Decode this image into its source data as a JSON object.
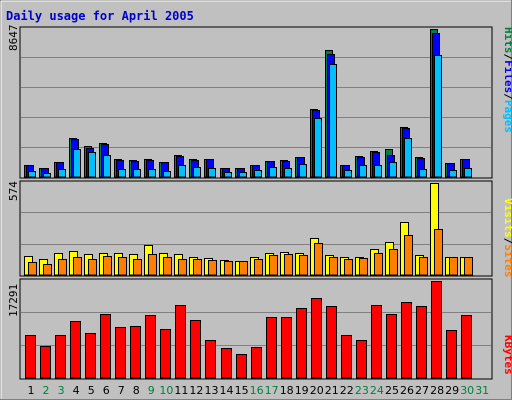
{
  "chart_data": [
    {
      "type": "bar",
      "title": "Daily usage for April 2005",
      "panel": "hits-files-pages",
      "categories": [
        "1",
        "2",
        "3",
        "4",
        "5",
        "6",
        "7",
        "8",
        "9",
        "10",
        "11",
        "12",
        "13",
        "14",
        "15",
        "16",
        "17",
        "18",
        "19",
        "20",
        "21",
        "22",
        "23",
        "24",
        "25",
        "26",
        "27",
        "28",
        "29",
        "30",
        "31"
      ],
      "weekend_days": [
        "2",
        "3",
        "9",
        "10",
        "16",
        "17",
        "23",
        "24",
        "30",
        "31"
      ],
      "ymax_label": "8647",
      "ylim": [
        0,
        8647
      ],
      "right_labels": [
        "Pages",
        "Files",
        "Hits"
      ],
      "series": [
        {
          "name": "Hits",
          "color": "#008040",
          "values": [
            700,
            510,
            880,
            2300,
            1800,
            1980,
            1030,
            980,
            1030,
            880,
            1300,
            1030,
            1060,
            540,
            540,
            730,
            950,
            980,
            1180,
            4000,
            7400,
            730,
            1200,
            1510,
            1620,
            2950,
            1180,
            8647,
            840,
            1080,
            0
          ]
        },
        {
          "name": "Files",
          "color": "#0000ff",
          "values": [
            680,
            500,
            860,
            2200,
            1720,
            1900,
            1000,
            950,
            1000,
            860,
            1250,
            1000,
            1030,
            520,
            520,
            700,
            920,
            950,
            1150,
            3900,
            7200,
            700,
            1180,
            1450,
            1300,
            2850,
            1130,
            8400,
            820,
            1050,
            0
          ]
        },
        {
          "name": "Pages",
          "color": "#00c0ff",
          "values": [
            350,
            250,
            450,
            1650,
            1480,
            1300,
            490,
            490,
            490,
            370,
            700,
            570,
            510,
            270,
            270,
            400,
            570,
            510,
            770,
            3450,
            6600,
            420,
            680,
            730,
            860,
            2300,
            490,
            7150,
            400,
            510,
            0
          ]
        }
      ]
    },
    {
      "type": "bar",
      "panel": "sites-visits",
      "categories": [
        "1",
        "2",
        "3",
        "4",
        "5",
        "6",
        "7",
        "8",
        "9",
        "10",
        "11",
        "12",
        "13",
        "14",
        "15",
        "16",
        "17",
        "18",
        "19",
        "20",
        "21",
        "22",
        "23",
        "24",
        "25",
        "26",
        "27",
        "28",
        "29",
        "30",
        "31"
      ],
      "ymax_label": "574",
      "ylim": [
        0,
        574
      ],
      "right_labels": [
        "Sites",
        "Visits"
      ],
      "series": [
        {
          "name": "Visits",
          "color": "#ffff00",
          "values": [
            120,
            100,
            140,
            150,
            130,
            140,
            135,
            130,
            190,
            135,
            130,
            115,
            105,
            95,
            90,
            110,
            140,
            145,
            140,
            230,
            125,
            110,
            115,
            165,
            205,
            330,
            125,
            574,
            115,
            115,
            0
          ]
        },
        {
          "name": "Sites",
          "color": "#ff8000",
          "values": [
            80,
            70,
            100,
            110,
            100,
            120,
            110,
            100,
            130,
            110,
            100,
            100,
            95,
            85,
            85,
            100,
            125,
            130,
            125,
            200,
            110,
            100,
            105,
            135,
            160,
            250,
            110,
            285,
            110,
            110,
            0
          ]
        }
      ]
    },
    {
      "type": "bar",
      "panel": "kbytes",
      "categories": [
        "1",
        "2",
        "3",
        "4",
        "5",
        "6",
        "7",
        "8",
        "9",
        "10",
        "11",
        "12",
        "13",
        "14",
        "15",
        "16",
        "17",
        "18",
        "19",
        "20",
        "21",
        "22",
        "23",
        "24",
        "25",
        "26",
        "27",
        "28",
        "29",
        "30",
        "31"
      ],
      "ymax_label": "17291",
      "ylim": [
        0,
        17291
      ],
      "right_labels": [
        "KBytes"
      ],
      "series": [
        {
          "name": "KBytes",
          "color": "#ff0000",
          "values": [
            7730,
            5650,
            7730,
            10160,
            8100,
            11410,
            9100,
            9260,
            11290,
            8700,
            13000,
            10300,
            6850,
            5400,
            4280,
            5600,
            10920,
            10800,
            12440,
            14300,
            12800,
            7600,
            6850,
            13050,
            11400,
            13550,
            12800,
            17291,
            8550,
            11290,
            0
          ]
        }
      ]
    }
  ],
  "colors": {
    "background": "#c0c0c0",
    "grid": "#808080",
    "title": "#0000cc",
    "weekday_label": "#000000",
    "weekend_label": "#008040",
    "outline": "#000000"
  }
}
